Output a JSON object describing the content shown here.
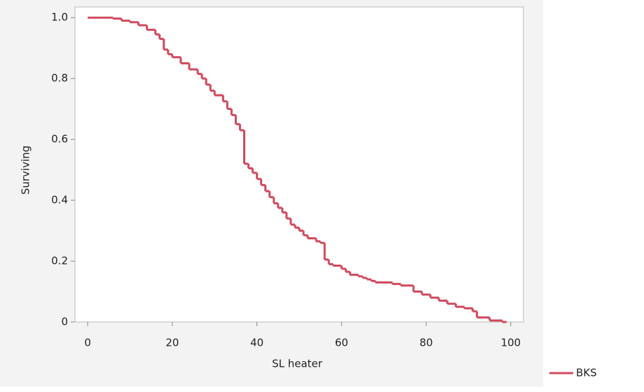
{
  "chart_data": {
    "type": "line",
    "step": true,
    "x_label": "SL heater",
    "y_label": "Surviving",
    "xlim": [
      -3,
      103
    ],
    "ylim": [
      0,
      1.035
    ],
    "xticks": [
      0,
      20,
      40,
      60,
      80,
      100
    ],
    "yticks": [
      0,
      0.2,
      0.4,
      0.6,
      0.8,
      {
        "value": 1,
        "label": "1.0"
      }
    ],
    "legend": "bottom-right",
    "x": [
      0,
      6,
      8,
      10,
      12,
      14,
      16,
      17,
      18,
      19,
      20,
      22,
      24,
      26,
      27,
      28,
      29,
      30,
      32,
      33,
      34,
      35,
      36,
      37,
      38,
      39,
      40,
      41,
      42,
      43,
      44,
      45,
      46,
      47,
      48,
      49,
      50,
      51,
      52,
      54,
      55,
      56,
      57,
      58,
      60,
      61,
      62,
      64,
      65,
      66,
      67,
      68,
      72,
      74,
      77,
      79,
      81,
      83,
      85,
      87,
      89,
      91,
      92,
      95,
      98,
      99
    ],
    "series": [
      {
        "name": "BKS",
        "color": "#d0495c",
        "values": [
          1,
          0.997,
          0.99,
          0.985,
          0.975,
          0.96,
          0.945,
          0.93,
          0.895,
          0.88,
          0.87,
          0.85,
          0.83,
          0.815,
          0.8,
          0.78,
          0.76,
          0.745,
          0.725,
          0.7,
          0.68,
          0.65,
          0.63,
          0.52,
          0.505,
          0.49,
          0.47,
          0.45,
          0.43,
          0.41,
          0.39,
          0.375,
          0.36,
          0.34,
          0.32,
          0.31,
          0.3,
          0.285,
          0.275,
          0.265,
          0.26,
          0.205,
          0.19,
          0.185,
          0.175,
          0.165,
          0.155,
          0.15,
          0.145,
          0.14,
          0.135,
          0.13,
          0.125,
          0.12,
          0.1,
          0.09,
          0.08,
          0.07,
          0.06,
          0.05,
          0.045,
          0.035,
          0.015,
          0.005,
          0,
          0
        ]
      }
    ]
  }
}
